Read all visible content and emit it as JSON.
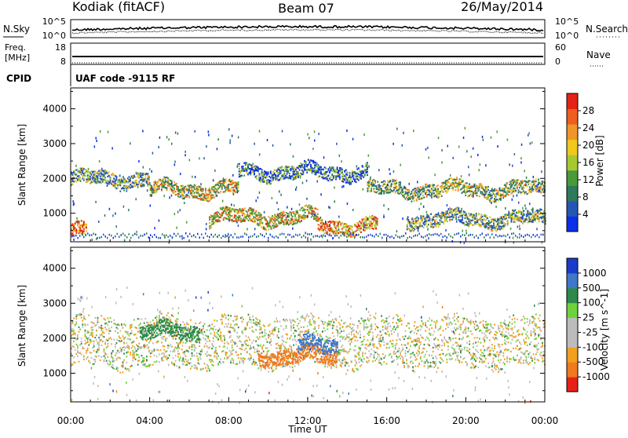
{
  "header": {
    "station": "Kodiak (fitACF)",
    "beam": "Beam 07",
    "date": "26/May/2014"
  },
  "aux": {
    "nsky_label": "N.Sky",
    "nsearch_label": "N.Search",
    "freq_label_line1": "Freq.",
    "freq_label_line2": "[MHz]",
    "nave_label": "Nave",
    "cpid_label": "CPID",
    "cpid_value": "UAF code -9115 RF",
    "noise_left_ticks": [
      "10^5",
      "10^0"
    ],
    "noise_right_ticks": [
      "10^5",
      "10^0"
    ],
    "freq_ticks": [
      "18",
      "8"
    ],
    "nave_ticks": [
      "60",
      "0"
    ],
    "freq_range": [
      8,
      18
    ],
    "nave_range": [
      0,
      60
    ]
  },
  "chart_data": [
    {
      "type": "heatmap",
      "name": "power",
      "ylabel": "Slant Range [km]",
      "ylim": [
        180,
        4600
      ],
      "yticks": [
        1000,
        2000,
        3000,
        4000
      ],
      "xlim_hours": [
        0,
        24
      ],
      "colorbar": {
        "label": "Power [dB]",
        "ticks": [
          "4",
          "8",
          "12",
          "16",
          "20",
          "24",
          "28"
        ],
        "colors": [
          "#0a2fe6",
          "#2656b4",
          "#2e7a5a",
          "#4a9a3a",
          "#a8c832",
          "#f0c81e",
          "#f09628",
          "#ee5e1e",
          "#e32315"
        ]
      },
      "features": [
        {
          "t_start": 0.0,
          "t_end": 0.8,
          "range_km": 500,
          "dB": 28
        },
        {
          "t_start": 0.0,
          "t_end": 4.0,
          "range_km": 2000,
          "dB": 14
        },
        {
          "t_start": 4.0,
          "t_end": 8.5,
          "range_km": 1700,
          "dB": 18
        },
        {
          "t_start": 8.5,
          "t_end": 15.0,
          "range_km": 2200,
          "dB": 10
        },
        {
          "t_start": 7.0,
          "t_end": 12.5,
          "range_km": 900,
          "dB": 20
        },
        {
          "t_start": 12.5,
          "t_end": 15.5,
          "range_km": 650,
          "dB": 24
        },
        {
          "t_start": 15.0,
          "t_end": 24.0,
          "range_km": 1700,
          "dB": 16
        },
        {
          "t_start": 17.0,
          "t_end": 24.0,
          "range_km": 850,
          "dB": 14
        }
      ]
    },
    {
      "type": "heatmap",
      "name": "velocity",
      "ylabel": "Slant Range [km]",
      "xlabel": "Time UT",
      "ylim": [
        180,
        4600
      ],
      "yticks": [
        1000,
        2000,
        3000,
        4000
      ],
      "xlim_hours": [
        0,
        24
      ],
      "xticks": [
        "00:00",
        "04:00",
        "08:00",
        "12:00",
        "16:00",
        "20:00",
        "00:00"
      ],
      "colorbar": {
        "label": "Velocity [m s^-1]",
        "ticks": [
          "1000",
          "500",
          "100",
          "25",
          "-25",
          "-100",
          "-500",
          "-1000"
        ],
        "colors": [
          "#1a3ccc",
          "#3f78c8",
          "#2e8a4a",
          "#6ed23c",
          "#bcbcbc",
          "#bcbcbc",
          "#f0a01e",
          "#f07a1e",
          "#e62218"
        ]
      },
      "features": [
        {
          "t_start": 0.0,
          "t_end": 24.0,
          "range_km": 1900,
          "velocity_ms": 0
        },
        {
          "t_start": 3.5,
          "t_end": 6.5,
          "range_km": 2200,
          "velocity_ms": 200
        },
        {
          "t_start": 9.5,
          "t_end": 13.5,
          "range_km": 1500,
          "velocity_ms": -300
        },
        {
          "t_start": 11.5,
          "t_end": 13.5,
          "range_km": 1800,
          "velocity_ms": 500
        }
      ]
    }
  ]
}
